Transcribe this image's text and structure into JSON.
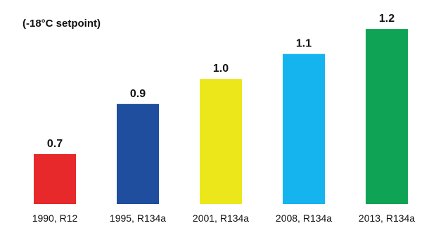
{
  "chart_data": {
    "type": "bar",
    "title": "",
    "subtitle": "(-18°C setpoint)",
    "xlabel": "",
    "ylabel": "",
    "categories": [
      "1990, R12",
      "1995, R134a",
      "2001, R134a",
      "2008, R134a",
      "2013, R134a"
    ],
    "values": [
      0.7,
      0.9,
      1.0,
      1.1,
      1.2
    ],
    "data_labels": [
      "0.7",
      "0.9",
      "1.0",
      "1.1",
      "1.2"
    ],
    "colors": [
      "#e8292b",
      "#1f4e9f",
      "#ece71a",
      "#15b4ee",
      "#0fa455"
    ],
    "ylim": [
      0.5,
      1.22
    ],
    "grid": false,
    "legend": "none"
  }
}
